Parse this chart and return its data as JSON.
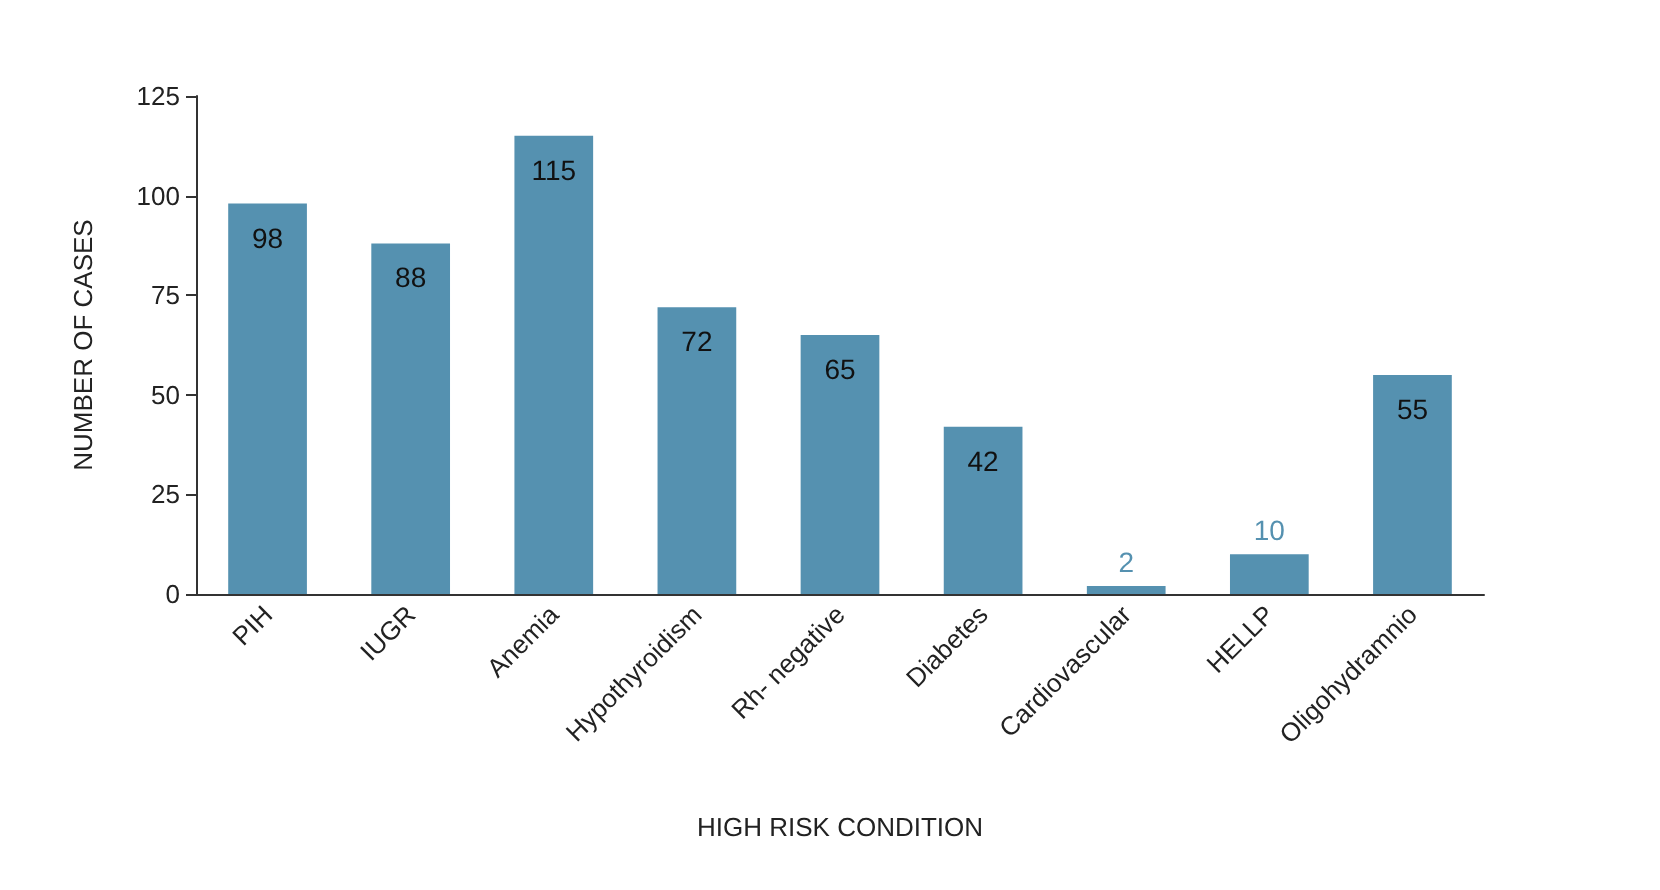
{
  "chart_data": {
    "type": "bar",
    "xlabel": "HIGH RISK CONDITION",
    "ylabel": "NUMBER OF CASES",
    "categories": [
      "PIH",
      "IUGR",
      "Anemia",
      "Hypothyroidism",
      "Rh- negative",
      "Diabetes",
      "Cardiovascular",
      "HELLP",
      "Oligohydramnio"
    ],
    "values": [
      98,
      88,
      115,
      72,
      65,
      42,
      2,
      10,
      55
    ],
    "color": "#5591b0",
    "ylim": [
      0,
      125
    ],
    "yticks": [
      0,
      25,
      50,
      75,
      100,
      125
    ],
    "data_labels": true
  }
}
